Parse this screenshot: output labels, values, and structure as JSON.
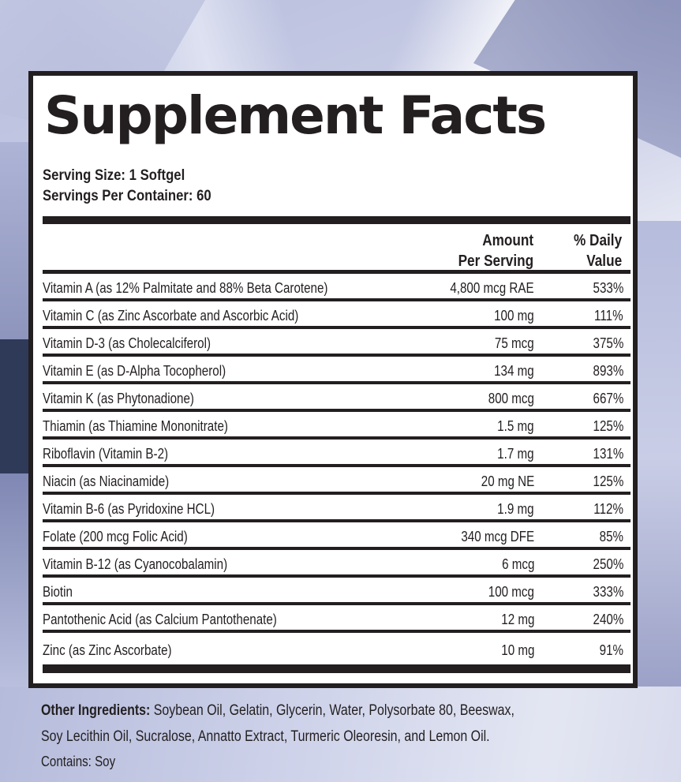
{
  "label": {
    "title": "Supplement Facts",
    "serving_size": "Serving Size: 1 Softgel",
    "servings_per_container": "Servings Per Container: 60",
    "columns": {
      "amount_line1": "Amount",
      "amount_line2": "Per Serving",
      "dv_line1": "% Daily",
      "dv_line2": "Value"
    },
    "rows": [
      {
        "name": "Vitamin A (as 12% Palmitate and 88% Beta Carotene)",
        "amount": "4,800 mcg RAE",
        "dv": "533%"
      },
      {
        "name": "Vitamin C (as Zinc Ascorbate and Ascorbic Acid)",
        "amount": "100 mg",
        "dv": "111%"
      },
      {
        "name": "Vitamin D-3 (as Cholecalciferol)",
        "amount": "75 mcg",
        "dv": "375%"
      },
      {
        "name": "Vitamin E (as D-Alpha Tocopherol)",
        "amount": "134 mg",
        "dv": "893%"
      },
      {
        "name": "Vitamin K (as Phytonadione)",
        "amount": "800 mcg",
        "dv": "667%"
      },
      {
        "name": "Thiamin (as Thiamine Mononitrate)",
        "amount": "1.5 mg",
        "dv": "125%"
      },
      {
        "name": "Riboflavin (Vitamin B-2)",
        "amount": "1.7 mg",
        "dv": "131%"
      },
      {
        "name": "Niacin (as Niacinamide)",
        "amount": "20 mg NE",
        "dv": "125%"
      },
      {
        "name": "Vitamin B-6 (as Pyridoxine HCL)",
        "amount": "1.9 mg",
        "dv": "112%"
      },
      {
        "name": "Folate (200 mcg Folic Acid)",
        "amount": "340 mcg DFE",
        "dv": "85%"
      },
      {
        "name": "Vitamin B-12 (as Cyanocobalamin)",
        "amount": "6 mcg",
        "dv": "250%"
      },
      {
        "name": "Biotin",
        "amount": "100 mcg",
        "dv": "333%"
      },
      {
        "name": "Pantothenic Acid (as Calcium Pantothenate)",
        "amount": "12 mg",
        "dv": "240%"
      },
      {
        "name": "Zinc (as Zinc Ascorbate)",
        "amount": "10 mg",
        "dv": "91%"
      }
    ]
  },
  "footer": {
    "other_ingredients_label": "Other Ingredients:",
    "other_ingredients_line1": " Soybean Oil, Gelatin, Glycerin, Water, Polysorbate 80, Beeswax,",
    "other_ingredients_line2": "Soy Lecithin Oil, Sucralose, Annatto Extract, Turmeric Oleoresin, and Lemon Oil.",
    "contains": "Contains: Soy"
  },
  "colors": {
    "ink": "#231f20",
    "panel": "#ffffff",
    "background_tint": "#b8bedd"
  }
}
